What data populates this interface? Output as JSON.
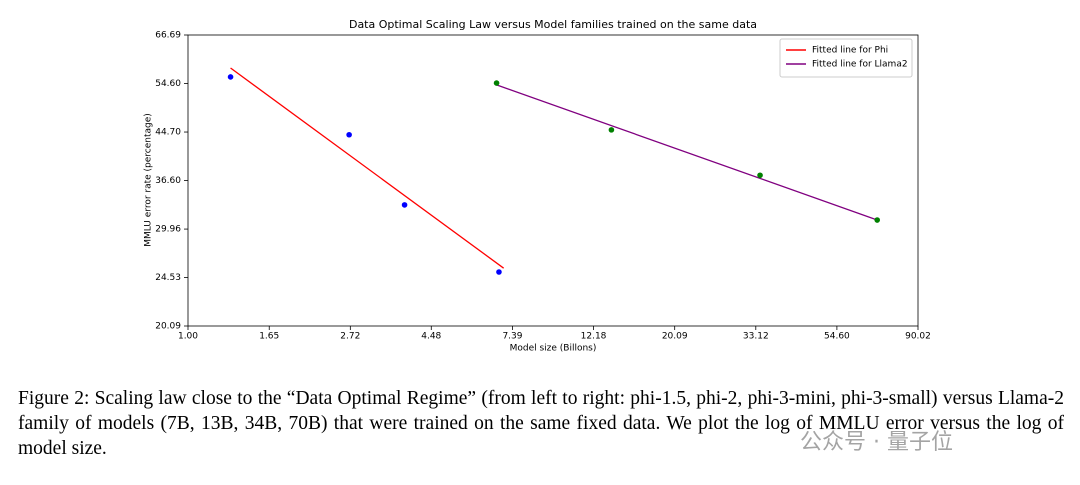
{
  "chart_data": {
    "type": "scatter",
    "title": "Data Optimal Scaling Law versus Model families trained on the same data",
    "x_label": "Model size (Billons)",
    "y_label": "MMLU error rate (percentage)",
    "x_log": true,
    "y_log": true,
    "xlim": [
      1,
      90.02
    ],
    "xticks": [
      {
        "value": 1,
        "label": "1.00"
      },
      1.65,
      2.72,
      4.48,
      7.39,
      12.18,
      20.09,
      33.12,
      {
        "value": 54.6,
        "label": "54.60"
      },
      90.02
    ],
    "ylim": [
      20.09,
      66.69
    ],
    "yticks": [
      20.09,
      24.53,
      29.96,
      {
        "value": 36.6,
        "label": "36.60"
      },
      {
        "value": 44.7,
        "label": "44.70"
      },
      {
        "value": 54.6,
        "label": "54.60"
      },
      66.69
    ],
    "legend": "upper right",
    "series": [
      {
        "name": "Fitted line for Phi",
        "color": "#ff0000",
        "x": [
          1.3,
          7
        ],
        "values": [
          58.2,
          25.5
        ]
      },
      {
        "name": "Fitted line for Llama2",
        "color": "#800080",
        "x": [
          6.7,
          70
        ],
        "values": [
          54.3,
          31.1
        ]
      }
    ],
    "points": [
      {
        "color": "#0000ff",
        "x": [
          1.3,
          2.7,
          3.8,
          6.8
        ],
        "values": [
          56.1,
          44.2,
          33.1,
          25.1
        ]
      },
      {
        "color": "#008000",
        "x": [
          6.7,
          13.6,
          34,
          70
        ],
        "values": [
          54.7,
          45.1,
          37.4,
          31.1
        ]
      }
    ]
  },
  "caption": "Figure 2: Scaling law close to the “Data Optimal Regime” (from left to right: phi-1.5, phi-2, phi-3-mini, phi-3-small) versus Llama-2 family of models (7B, 13B, 34B, 70B) that were trained on the same fixed data. We plot the log of MMLU error versus the log of model size.",
  "watermark": "公众号 · 量子位"
}
